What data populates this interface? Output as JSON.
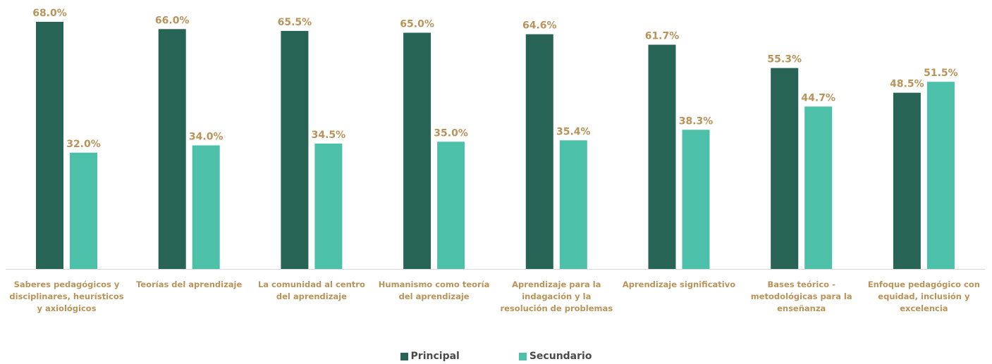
{
  "chart_data": {
    "type": "bar",
    "categories": [
      [
        "Saberes pedagógicos y",
        "disciplinares, heurísticos",
        "y axiológicos"
      ],
      [
        "Teorías del aprendizaje"
      ],
      [
        "La comunidad al centro",
        "del aprendizaje"
      ],
      [
        "Humanismo como teoría",
        "del aprendizaje"
      ],
      [
        "Aprendizaje para la",
        "indagación y la",
        "resolución de problemas"
      ],
      [
        "Aprendizaje significativo"
      ],
      [
        "Bases teórico -",
        "metodológicas para la",
        "enseñanza"
      ],
      [
        "Enfoque pedagógico con",
        "equidad, inclusión y",
        "excelencia"
      ]
    ],
    "series": [
      {
        "name": "Principal",
        "color": "#286455",
        "values": [
          68.0,
          66.0,
          65.5,
          65.0,
          64.6,
          61.7,
          55.3,
          48.5
        ],
        "labels": [
          "68.0%",
          "66.0%",
          "65.5%",
          "65.0%",
          "64.6%",
          "61.7%",
          "55.3%",
          "48.5%"
        ]
      },
      {
        "name": "Secundario",
        "color": "#4dc0a9",
        "values": [
          32.0,
          34.0,
          34.5,
          35.0,
          35.4,
          38.3,
          44.7,
          51.5
        ],
        "labels": [
          "32.0%",
          "34.0%",
          "34.5%",
          "35.0%",
          "35.4%",
          "38.3%",
          "44.7%",
          "51.5%"
        ]
      }
    ],
    "ylim": [
      0,
      70
    ],
    "grid": false,
    "legend_position": "bottom",
    "value_label_color": "#b8935a",
    "category_label_color": "#b8935a"
  }
}
